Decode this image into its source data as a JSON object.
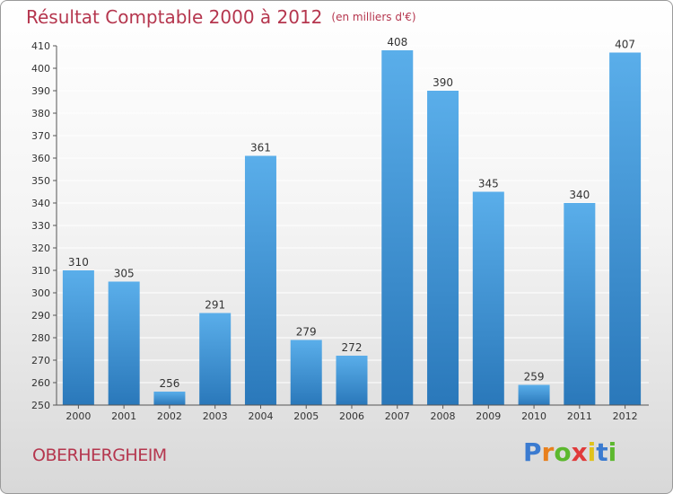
{
  "header": {
    "title": "Résultat Comptable 2000 à 2012",
    "unit": "(en milliers d'€)"
  },
  "footer": {
    "commune": "OBERHERGHEIM",
    "brand": "Proxiti"
  },
  "colors": {
    "title": "#b5364e",
    "bar_top": "#5aaeea",
    "bar_bottom": "#2a78ba",
    "grid": "#ffffff",
    "logo_letters": [
      "#3b7bd0",
      "#e8801d",
      "#5cb82e",
      "#e03a3a",
      "#e0c21c",
      "#3b7bd0",
      "#5cb82e"
    ]
  },
  "chart_data": {
    "type": "bar",
    "title": "Résultat Comptable 2000 à 2012",
    "subtitle": "(en milliers d'€)",
    "xlabel": "",
    "ylabel": "",
    "categories": [
      "2000",
      "2001",
      "2002",
      "2003",
      "2004",
      "2005",
      "2006",
      "2007",
      "2008",
      "2009",
      "2010",
      "2011",
      "2012"
    ],
    "values": [
      310,
      305,
      256,
      291,
      361,
      279,
      272,
      408,
      390,
      345,
      259,
      340,
      407
    ],
    "ylim": [
      250,
      410
    ],
    "yticks": [
      250,
      260,
      270,
      280,
      290,
      300,
      310,
      320,
      330,
      340,
      350,
      360,
      370,
      380,
      390,
      400,
      410
    ],
    "grid": true,
    "data_labels": true
  }
}
